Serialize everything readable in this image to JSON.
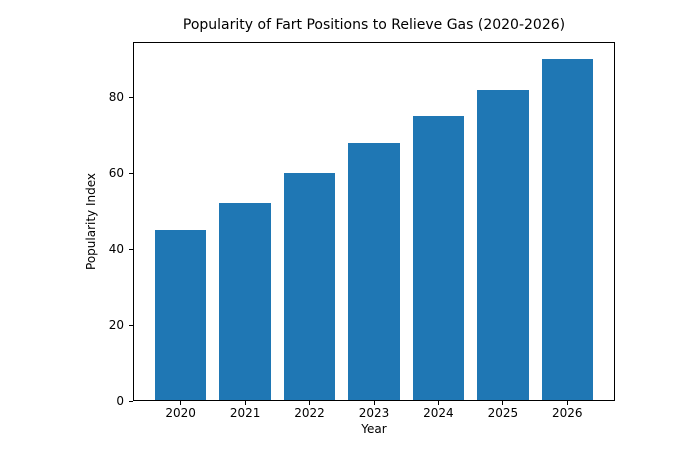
{
  "chart_data": {
    "type": "bar",
    "title": "Popularity of Fart Positions to Relieve Gas (2020-2026)",
    "xlabel": "Year",
    "ylabel": "Popularity Index",
    "categories": [
      "2020",
      "2021",
      "2022",
      "2023",
      "2024",
      "2025",
      "2026"
    ],
    "values": [
      45,
      52,
      60,
      68,
      75,
      82,
      90
    ],
    "yticks": [
      0,
      20,
      40,
      60,
      80
    ],
    "ylim": [
      0,
      94.5
    ],
    "bar_color": "#1f77b4",
    "axis_color": "#000000",
    "background": "#ffffff",
    "grid": false,
    "legend": "none"
  }
}
